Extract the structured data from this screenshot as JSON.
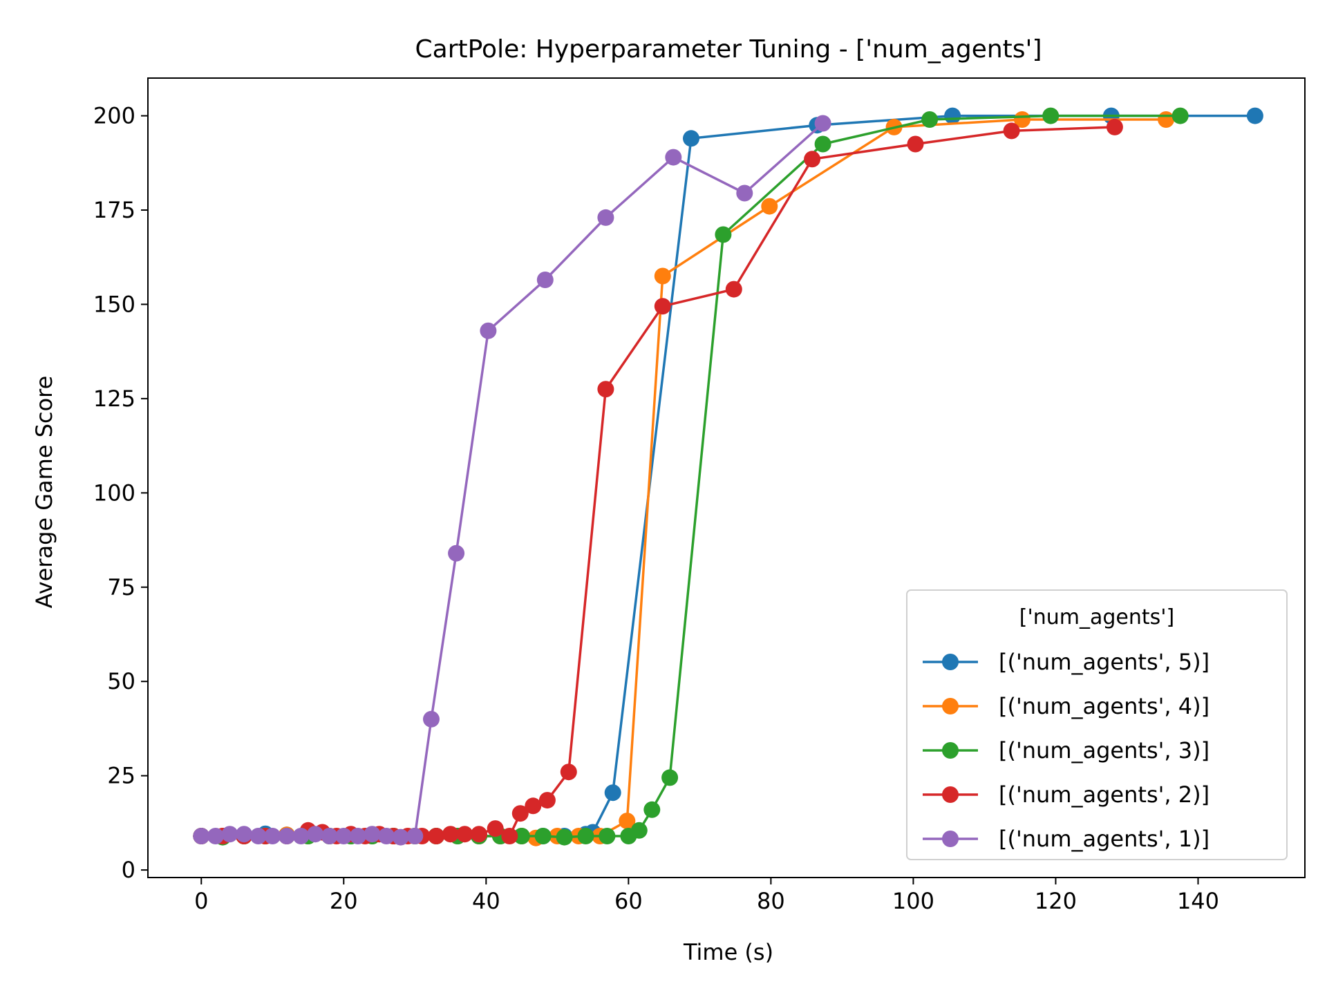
{
  "chart_data": {
    "type": "line",
    "title": "CartPole: Hyperparameter Tuning - ['num_agents']",
    "xlabel": "Time (s)",
    "ylabel": "Average Game Score",
    "xlim": [
      -7.5,
      155
    ],
    "ylim": [
      -2,
      210
    ],
    "xticks": [
      0,
      20,
      40,
      60,
      80,
      100,
      120,
      140
    ],
    "yticks": [
      0,
      25,
      50,
      75,
      100,
      125,
      150,
      175,
      200
    ],
    "legend": {
      "title": "['num_agents']",
      "position": "lower-right"
    },
    "grid": false,
    "series": [
      {
        "name": "[('num_agents', 5)]",
        "color": "#1f77b4",
        "x": [
          0,
          3,
          6,
          9,
          12,
          15,
          18,
          21,
          24,
          27,
          30,
          33,
          36,
          39,
          42,
          45,
          48,
          51,
          54,
          55,
          57.8,
          68.8,
          86.5,
          105.5,
          127.8,
          148
        ],
        "y": [
          9,
          9,
          9,
          9.6,
          9.3,
          9,
          9,
          9,
          9,
          9,
          9,
          9,
          9,
          9,
          9,
          9,
          9,
          9,
          9.5,
          10,
          20.5,
          194,
          197.5,
          200,
          200,
          200
        ]
      },
      {
        "name": "[('num_agents', 4)]",
        "color": "#ff7f0e",
        "x": [
          0,
          3,
          6,
          9,
          12,
          15,
          18,
          21,
          24,
          27,
          30,
          33,
          36,
          39,
          42,
          45,
          47,
          50,
          53,
          56,
          59.8,
          64.8,
          79.8,
          97.3,
          115.3,
          135.5
        ],
        "y": [
          9,
          9,
          9,
          9,
          9.3,
          9,
          9,
          9,
          9,
          9,
          9,
          9,
          9,
          9,
          9,
          9,
          8.5,
          9,
          9,
          9,
          13,
          157.5,
          176,
          197,
          199,
          199
        ]
      },
      {
        "name": "[('num_agents', 3)]",
        "color": "#2ca02c",
        "x": [
          0,
          3,
          6,
          9,
          12,
          15,
          18,
          21,
          24,
          27,
          30,
          33,
          36,
          39,
          42,
          45,
          48,
          51,
          54,
          57,
          60,
          61.5,
          63.3,
          65.8,
          73.3,
          87.3,
          102.3,
          119.3,
          137.5
        ],
        "y": [
          9,
          8.7,
          9,
          9,
          9,
          9,
          9,
          9,
          9,
          9,
          9,
          9,
          9,
          9,
          9,
          9,
          9,
          8.7,
          9,
          9,
          9,
          10.5,
          16,
          24.5,
          168.5,
          192.5,
          199,
          200,
          200
        ]
      },
      {
        "name": "[('num_agents', 2)]",
        "color": "#d62728",
        "x": [
          0,
          3,
          6,
          9,
          12,
          15,
          17,
          19,
          21,
          23,
          25,
          27,
          29,
          31,
          33,
          35,
          37,
          39,
          41.3,
          43.3,
          44.8,
          46.6,
          48.6,
          51.6,
          56.8,
          64.8,
          74.8,
          85.8,
          100.3,
          113.8,
          128.3
        ],
        "y": [
          9,
          9,
          9,
          9,
          9,
          10.5,
          10,
          9,
          9.5,
          9,
          9.5,
          9,
          9,
          9,
          9,
          9.5,
          9.5,
          9.5,
          11,
          9,
          15,
          17,
          18.5,
          26,
          127.5,
          149.5,
          154,
          188.5,
          192.5,
          196,
          197
        ]
      },
      {
        "name": "[('num_agents', 1)]",
        "color": "#9467bd",
        "x": [
          0,
          2,
          4,
          6,
          8,
          10,
          12,
          14,
          16,
          18,
          20,
          22,
          24,
          26,
          28,
          30,
          32.3,
          35.8,
          40.3,
          48.3,
          56.8,
          66.3,
          76.3,
          87.3
        ],
        "y": [
          9,
          9,
          9.5,
          9.5,
          9,
          9,
          9,
          9,
          9.5,
          9,
          9,
          9,
          9.5,
          9,
          8.7,
          9,
          40,
          84,
          143,
          156.5,
          173,
          189,
          179.5,
          198
        ]
      }
    ]
  }
}
